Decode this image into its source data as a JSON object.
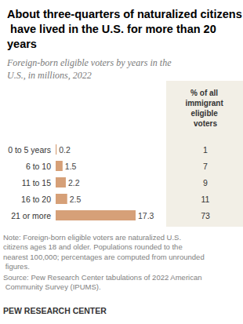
{
  "chart_data": {
    "type": "bar",
    "orientation": "horizontal",
    "title": "About three-quarters of naturalized citizens have lived in the U.S. for more than 20 years",
    "subtitle": "Foreign-born eligible voters by years in the U.S., in millions, 2022",
    "categories": [
      "0 to 5 years",
      "6 to 10",
      "11 to 15",
      "16 to 20",
      "21 or more"
    ],
    "values": [
      0.2,
      1.5,
      2.2,
      2.5,
      17.3
    ],
    "color": "#d6a078",
    "xlim": [
      0,
      17.3
    ],
    "data_labels": true,
    "tick_labels": "y",
    "grid": false,
    "share_header": "% of all immigrant eligible voters",
    "share_values": [
      1,
      7,
      9,
      11,
      73
    ],
    "note": "Note: Foreign-born eligible voters are naturalized U.S. citizens ages 18 and older. Populations rounded to the nearest 100,000; percentages are computed from unrounded figures.",
    "source": "Source: Pew Research Center tabulations of 2022 American Community Survey (IPUMS).",
    "credit": "PEW RESEARCH CENTER"
  }
}
